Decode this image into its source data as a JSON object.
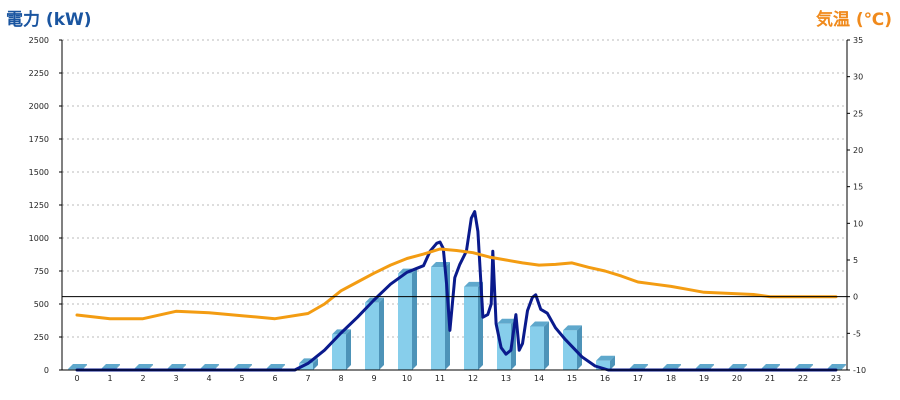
{
  "left_axis_title": "電力 (kW)",
  "right_axis_title": "気温 (℃)",
  "colors": {
    "left_title": "#1a55a0",
    "right_title": "#f08a1c",
    "bar_front": "#87ceeb",
    "bar_top": "#5fa8cc",
    "bar_side": "#4d93b8",
    "power_line": "#0a1a8c",
    "temp_line": "#f39c12",
    "grid": "#bbbbbb"
  },
  "chart_data": {
    "type": "bar",
    "x_ticks": [
      "0",
      "1",
      "2",
      "3",
      "4",
      "5",
      "6",
      "7",
      "8",
      "9",
      "10",
      "11",
      "12",
      "13",
      "14",
      "15",
      "16",
      "17",
      "18",
      "19",
      "20",
      "21",
      "22",
      "23"
    ],
    "left_axis": {
      "ylim": [
        0,
        2500
      ],
      "ticks": [
        "0",
        "250",
        "500",
        "750",
        "1000",
        "1250",
        "1500",
        "1750",
        "2000",
        "2250",
        "2500"
      ]
    },
    "right_axis": {
      "ylim": [
        -10,
        35
      ],
      "ticks": [
        "-10",
        "-5",
        "0",
        "5",
        "10",
        "15",
        "20",
        "25",
        "30",
        "35"
      ]
    },
    "grid": true,
    "series": [
      {
        "type": "bar",
        "axis": "left",
        "values": [
          0,
          0,
          0,
          0,
          0,
          0,
          0,
          50,
          270,
          510,
          730,
          780,
          630,
          350,
          330,
          300,
          70,
          0,
          0,
          0,
          0,
          0,
          0,
          0
        ]
      },
      {
        "type": "line",
        "axis": "left",
        "points": [
          [
            0,
            0
          ],
          [
            6.6,
            0
          ],
          [
            7,
            50
          ],
          [
            7.5,
            150
          ],
          [
            8,
            280
          ],
          [
            8.5,
            400
          ],
          [
            9,
            530
          ],
          [
            9.5,
            650
          ],
          [
            10,
            740
          ],
          [
            10.5,
            790
          ],
          [
            10.7,
            900
          ],
          [
            10.9,
            960
          ],
          [
            11,
            970
          ],
          [
            11.1,
            920
          ],
          [
            11.2,
            650
          ],
          [
            11.3,
            300
          ],
          [
            11.45,
            700
          ],
          [
            11.6,
            800
          ],
          [
            11.8,
            900
          ],
          [
            11.95,
            1150
          ],
          [
            12.05,
            1200
          ],
          [
            12.15,
            1050
          ],
          [
            12.3,
            400
          ],
          [
            12.45,
            420
          ],
          [
            12.55,
            500
          ],
          [
            12.6,
            900
          ],
          [
            12.7,
            350
          ],
          [
            12.85,
            170
          ],
          [
            13,
            120
          ],
          [
            13.15,
            150
          ],
          [
            13.3,
            420
          ],
          [
            13.4,
            150
          ],
          [
            13.5,
            200
          ],
          [
            13.65,
            450
          ],
          [
            13.8,
            550
          ],
          [
            13.9,
            570
          ],
          [
            14.05,
            460
          ],
          [
            14.25,
            430
          ],
          [
            14.5,
            320
          ],
          [
            14.8,
            230
          ],
          [
            15.3,
            100
          ],
          [
            15.7,
            30
          ],
          [
            16.1,
            0
          ],
          [
            23,
            0
          ]
        ]
      },
      {
        "type": "line",
        "axis": "right",
        "points": [
          [
            0,
            -2.5
          ],
          [
            1,
            -3
          ],
          [
            2,
            -3
          ],
          [
            3,
            -2
          ],
          [
            4,
            -2.2
          ],
          [
            5,
            -2.6
          ],
          [
            6,
            -3
          ],
          [
            7,
            -2.3
          ],
          [
            7.5,
            -1
          ],
          [
            8,
            0.8
          ],
          [
            8.5,
            2
          ],
          [
            9,
            3.2
          ],
          [
            9.5,
            4.3
          ],
          [
            10,
            5.2
          ],
          [
            10.5,
            5.8
          ],
          [
            11,
            6.5
          ],
          [
            11.5,
            6.3
          ],
          [
            12,
            6
          ],
          [
            12.5,
            5.4
          ],
          [
            13,
            5
          ],
          [
            13.5,
            4.6
          ],
          [
            14,
            4.3
          ],
          [
            14.5,
            4.4
          ],
          [
            15,
            4.6
          ],
          [
            15.5,
            4
          ],
          [
            16,
            3.5
          ],
          [
            16.5,
            2.8
          ],
          [
            17,
            2
          ],
          [
            17.5,
            1.7
          ],
          [
            18,
            1.4
          ],
          [
            18.5,
            1
          ],
          [
            19,
            0.6
          ],
          [
            19.5,
            0.5
          ],
          [
            20,
            0.4
          ],
          [
            20.5,
            0.3
          ],
          [
            21,
            0
          ],
          [
            22,
            0
          ],
          [
            23,
            0
          ]
        ]
      }
    ]
  }
}
